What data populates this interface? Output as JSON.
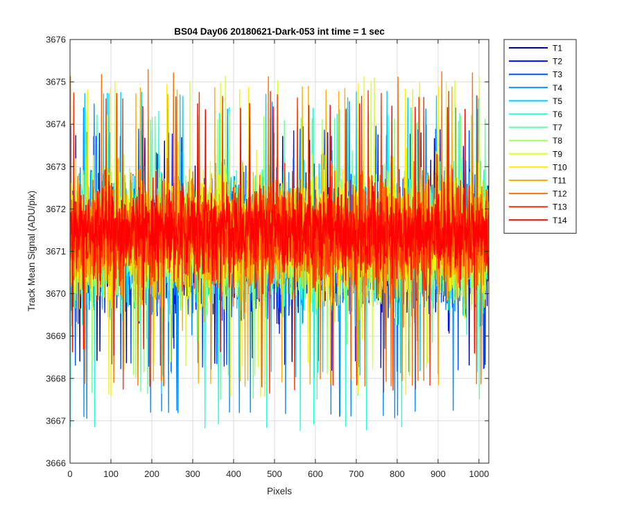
{
  "chart_data": {
    "type": "line",
    "title": "BS04 Day06 20180621-Dark-053 int time = 1 sec",
    "xlabel": "Pixels",
    "ylabel": "Track Mean Signal (ADU/pix)",
    "xlim": [
      0,
      1024
    ],
    "ylim": [
      3666,
      3676
    ],
    "xticks": [
      0,
      100,
      200,
      300,
      400,
      500,
      600,
      700,
      800,
      900,
      1000
    ],
    "yticks": [
      3666,
      3667,
      3668,
      3669,
      3670,
      3671,
      3672,
      3673,
      3674,
      3675,
      3676
    ],
    "grid": true,
    "legend_position": "outside-top-right",
    "points_per_series": 1024,
    "series": [
      {
        "name": "T1",
        "color": "#00008f",
        "mean": 3671.1,
        "spread": 0.9,
        "min": 3668.3,
        "max": 3673.8
      },
      {
        "name": "T2",
        "color": "#0010ff",
        "mean": 3671.1,
        "spread": 0.9,
        "min": 3668.1,
        "max": 3673.9
      },
      {
        "name": "T3",
        "color": "#0050ff",
        "mean": 3671.1,
        "spread": 0.9,
        "min": 3668.2,
        "max": 3674.0
      },
      {
        "name": "T4",
        "color": "#0090ff",
        "mean": 3671.2,
        "spread": 0.95,
        "min": 3667.05,
        "max": 3674.55
      },
      {
        "name": "T5",
        "color": "#00d0ff",
        "mean": 3671.2,
        "spread": 0.9,
        "min": 3668.0,
        "max": 3674.8
      },
      {
        "name": "T6",
        "color": "#20ffdf",
        "mean": 3671.2,
        "spread": 0.95,
        "min": 3666.75,
        "max": 3674.4
      },
      {
        "name": "T7",
        "color": "#60ff9f",
        "mean": 3671.2,
        "spread": 0.9,
        "min": 3667.5,
        "max": 3674.2
      },
      {
        "name": "T8",
        "color": "#9fff60",
        "mean": 3671.2,
        "spread": 0.9,
        "min": 3668.0,
        "max": 3674.3
      },
      {
        "name": "T9",
        "color": "#dfff20",
        "mean": 3671.3,
        "spread": 0.9,
        "min": 3668.2,
        "max": 3675.15
      },
      {
        "name": "T10",
        "color": "#ffef00",
        "mean": 3671.3,
        "spread": 0.9,
        "min": 3667.55,
        "max": 3675.0
      },
      {
        "name": "T11",
        "color": "#ffaf00",
        "mean": 3671.3,
        "spread": 0.85,
        "min": 3667.8,
        "max": 3674.9
      },
      {
        "name": "T12",
        "color": "#ff7000",
        "mean": 3671.35,
        "spread": 0.8,
        "min": 3667.8,
        "max": 3675.3
      },
      {
        "name": "T13",
        "color": "#ff3000",
        "mean": 3671.4,
        "spread": 0.75,
        "min": 3667.65,
        "max": 3674.8
      },
      {
        "name": "T14",
        "color": "#ff0000",
        "mean": 3671.5,
        "spread": 0.6,
        "min": 3668.5,
        "max": 3674.5
      }
    ]
  }
}
